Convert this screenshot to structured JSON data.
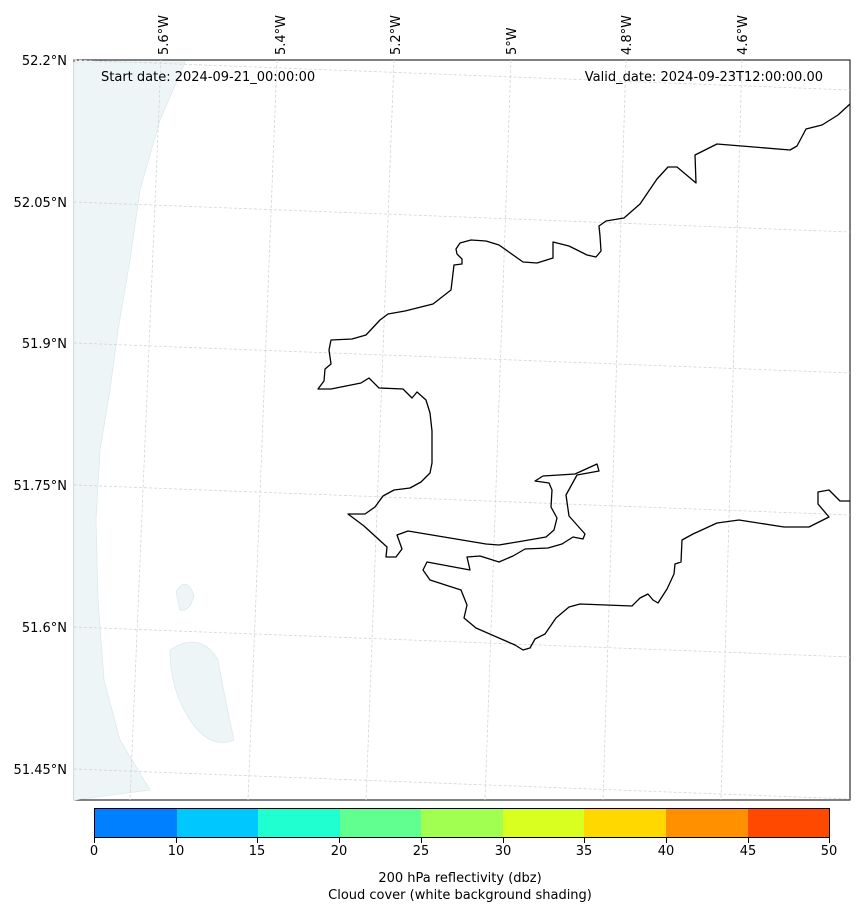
{
  "header": {
    "start_date": "Start date: 2024-09-21_00:00:00",
    "valid_date": "Valid_date: 2024-09-23T12:00:00.00"
  },
  "map": {
    "lon_ticks": [
      "5.6°W",
      "5.4°W",
      "5.2°W",
      "5°W",
      "4.8°W",
      "4.6°W"
    ],
    "lat_ticks": [
      "52.2°N",
      "52.05°N",
      "51.9°N",
      "51.75°N",
      "51.6°N",
      "51.45°N"
    ],
    "coastline_color": "#000000",
    "gridline_color": "#cccccc",
    "cloud_shading_color": "#eef5f7"
  },
  "colorbar": {
    "ticks": [
      "0",
      "10",
      "15",
      "20",
      "25",
      "30",
      "35",
      "40",
      "45",
      "50"
    ],
    "colors": [
      "#0080ff",
      "#00c8ff",
      "#20ffd0",
      "#60ff90",
      "#a0ff50",
      "#d8ff20",
      "#ffd800",
      "#ff9000",
      "#ff4800"
    ],
    "label_line1": "200 hPa reflectivity (dbz)",
    "label_line2": "Cloud cover (white background shading)"
  }
}
